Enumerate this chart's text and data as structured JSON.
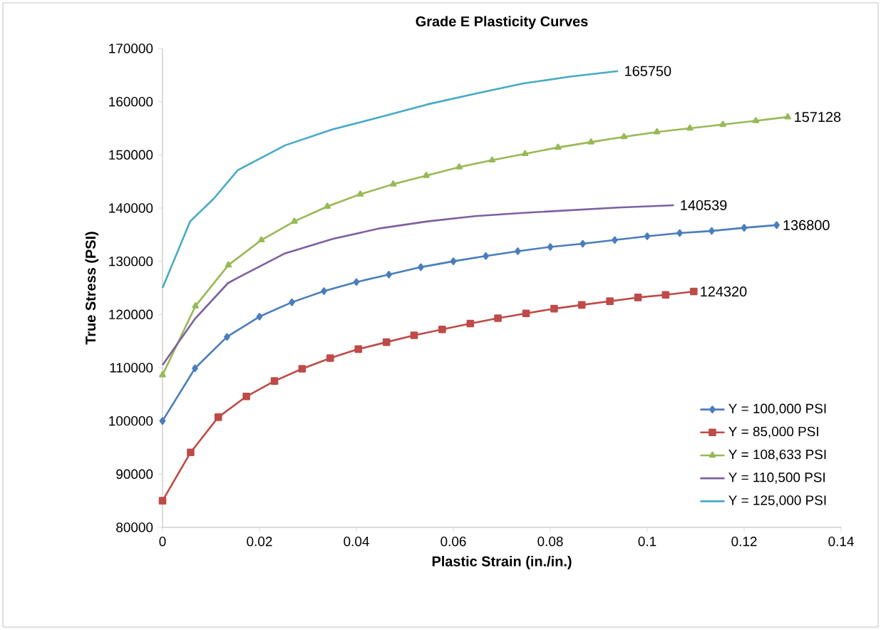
{
  "chart_data": {
    "type": "line",
    "title": "Grade E Plasticity Curves",
    "xlabel": "Plastic Strain (in./in.)",
    "ylabel": "True Stress (PSI)",
    "xlim": [
      0,
      0.14
    ],
    "xticks": [
      0,
      0.02,
      0.04,
      0.06,
      0.08,
      0.1,
      0.12,
      0.14
    ],
    "ylim": [
      80000,
      170000
    ],
    "yticks": [
      80000,
      90000,
      100000,
      110000,
      120000,
      130000,
      140000,
      150000,
      160000,
      170000
    ],
    "grid": false,
    "legend": "bottom right",
    "line_style": "solid",
    "series": [
      {
        "name": "Y = 100,000 PSI",
        "color": "#4a7ebb",
        "marker": "diamond",
        "x": [
          0,
          0.0067,
          0.0133,
          0.02,
          0.0267,
          0.0333,
          0.04,
          0.0467,
          0.0533,
          0.06,
          0.0667,
          0.0733,
          0.08,
          0.0867,
          0.0933,
          0.1,
          0.1067,
          0.1133,
          0.12,
          0.1267
        ],
        "values": [
          100000,
          109900,
          115800,
          119600,
          122300,
          124400,
          126100,
          127500,
          128900,
          130000,
          131000,
          131900,
          132700,
          133300,
          134000,
          134700,
          135300,
          135700,
          136300,
          136800
        ]
      },
      {
        "name": "Y = 85,000 PSI",
        "color": "#be4b48",
        "marker": "square",
        "x": [
          0,
          0.0058,
          0.0115,
          0.0173,
          0.0231,
          0.0288,
          0.0346,
          0.0404,
          0.0462,
          0.0519,
          0.0577,
          0.0635,
          0.0692,
          0.075,
          0.0808,
          0.0865,
          0.0923,
          0.0981,
          0.1038,
          0.1096
        ],
        "values": [
          85000,
          94100,
          100700,
          104600,
          107500,
          109800,
          111800,
          113500,
          114800,
          116100,
          117200,
          118300,
          119300,
          120200,
          121100,
          121800,
          122500,
          123200,
          123700,
          124320
        ]
      },
      {
        "name": "Y = 108,633 PSI",
        "color": "#98b954",
        "marker": "triangle",
        "x": [
          0,
          0.0068,
          0.0136,
          0.0204,
          0.0272,
          0.034,
          0.0408,
          0.0476,
          0.0544,
          0.0612,
          0.068,
          0.0748,
          0.0816,
          0.0884,
          0.0952,
          0.102,
          0.1088,
          0.1156,
          0.1224,
          0.129
        ],
        "values": [
          108633,
          121600,
          129300,
          134000,
          137500,
          140300,
          142600,
          144500,
          146100,
          147700,
          149000,
          150200,
          151400,
          152400,
          153400,
          154300,
          155000,
          155700,
          156400,
          157128
        ]
      },
      {
        "name": "Y = 110,500 PSI",
        "color": "#7d60a0",
        "marker": "none",
        "x": [
          0,
          0.0067,
          0.0135,
          0.0155,
          0.0253,
          0.0351,
          0.0449,
          0.0547,
          0.0645,
          0.0743,
          0.0841,
          0.0939,
          0.1055
        ],
        "values": [
          110500,
          119200,
          125900,
          126900,
          131500,
          134200,
          136200,
          137500,
          138500,
          139100,
          139600,
          140100,
          140539
        ]
      },
      {
        "name": "Y = 125,000 PSI",
        "color": "#46aac5",
        "marker": "none",
        "x": [
          0,
          0.0057,
          0.0106,
          0.0155,
          0.0253,
          0.0351,
          0.0449,
          0.0547,
          0.0645,
          0.0743,
          0.0841,
          0.094
        ],
        "values": [
          125000,
          137500,
          141800,
          147100,
          151800,
          154800,
          157100,
          159500,
          161500,
          163400,
          164700,
          165750
        ]
      }
    ],
    "annotations": [
      {
        "text": "165750",
        "x": 0.094,
        "y": 165750
      },
      {
        "text": "157128",
        "x": 0.129,
        "y": 157128
      },
      {
        "text": "140539",
        "x": 0.1055,
        "y": 140539
      },
      {
        "text": "136800",
        "x": 0.1267,
        "y": 136800
      },
      {
        "text": "124320",
        "x": 0.1096,
        "y": 124320
      }
    ]
  }
}
